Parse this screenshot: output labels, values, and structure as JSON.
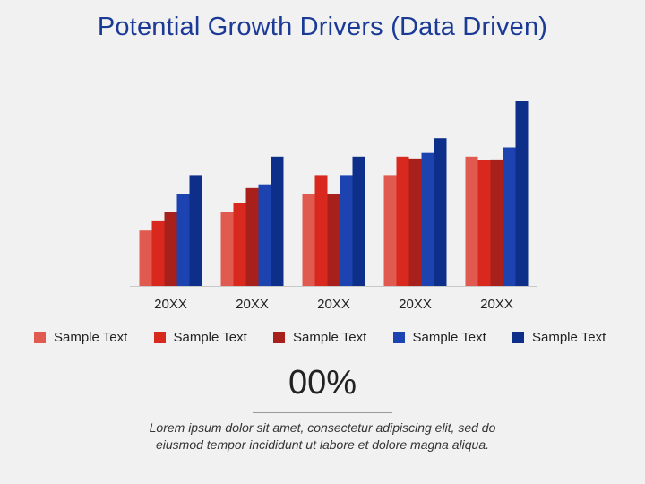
{
  "title": "Potential Growth Drivers (Data Driven)",
  "chart_data": {
    "type": "bar",
    "title": "Potential Growth Drivers (Data Driven)",
    "categories": [
      "20XX",
      "20XX",
      "20XX",
      "20XX",
      "20XX"
    ],
    "series": [
      {
        "name": "Sample Text",
        "color": "#e05a4f",
        "values": [
          3.0,
          4.0,
          5.0,
          6.0,
          7.0
        ]
      },
      {
        "name": "Sample Text",
        "color": "#d9281e",
        "values": [
          3.5,
          4.5,
          6.0,
          7.0,
          6.8
        ]
      },
      {
        "name": "Sample Text",
        "color": "#a8201c",
        "values": [
          4.0,
          5.3,
          5.0,
          6.9,
          6.85
        ]
      },
      {
        "name": "Sample Text",
        "color": "#1c43b0",
        "values": [
          5.0,
          5.5,
          6.0,
          7.2,
          7.5
        ]
      },
      {
        "name": "Sample Text",
        "color": "#0d2f8a",
        "values": [
          6.0,
          7.0,
          7.0,
          8.0,
          10.0
        ]
      }
    ],
    "ylim": [
      0,
      10
    ],
    "grid": false,
    "legend": "bottom"
  },
  "summary": {
    "value": "00%",
    "text": "Lorem ipsum dolor sit amet, consectetur adipiscing elit, sed do eiusmod tempor incididunt ut labore et dolore magna aliqua."
  }
}
